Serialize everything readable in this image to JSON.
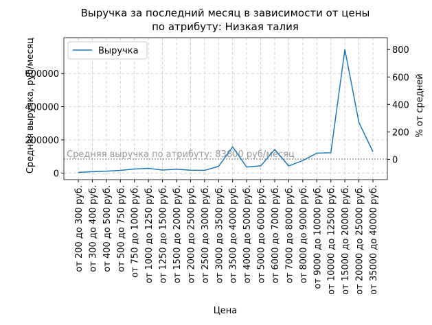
{
  "chart_data": {
    "type": "line",
    "title": [
      "Выручка за последний месяц в зависимости от цены",
      "по атрибуту: Низкая талия"
    ],
    "xlabel": "Цена",
    "ylabel": "Средняя выручка, руб/месяц",
    "y2label": "% от средней",
    "categories": [
      "от 200 до 300 руб.",
      "от 300 до 400 руб.",
      "от 400 до 500 руб.",
      "от 500 до 750 руб.",
      "от 750 до 1000 руб.",
      "от 1000 до 1250 руб.",
      "от 1250 до 1500 руб.",
      "от 1500 до 2000 руб.",
      "от 2000 до 2500 руб.",
      "от 2500 до 3000 руб.",
      "от 3000 до 3500 руб.",
      "от 3500 до 4000 руб.",
      "от 4000 до 5000 руб.",
      "от 5000 до 6000 руб.",
      "от 6000 до 7000 руб.",
      "от 7000 до 8000 руб.",
      "от 8000 до 9000 руб.",
      "от 9000 до 10000 руб.",
      "от 10000 до 12500 руб.",
      "от 15000 до 20000 руб.",
      "от 20000 до 25000 руб.",
      "от 35000 до 40000 руб."
    ],
    "series": [
      {
        "name": "Выручка",
        "color": "#1f77b4",
        "values": [
          4000,
          8000,
          11000,
          16000,
          24000,
          28000,
          18000,
          23000,
          17000,
          16000,
          40000,
          158000,
          36000,
          43000,
          142000,
          43000,
          75000,
          120000,
          122000,
          745000,
          305000,
          128000
        ]
      }
    ],
    "mean": {
      "value": 83800,
      "label": "Средняя выручка по атрибуту: 83800 руб/месяц",
      "color": "#999999"
    },
    "ylim": [
      -40000,
      816000
    ],
    "yticks": [
      0,
      200000,
      400000,
      600000
    ],
    "y2lim": [
      -148,
      886
    ],
    "y2ticks": [
      0,
      200,
      400,
      600,
      800
    ],
    "grid": true,
    "legend": "upper left"
  }
}
